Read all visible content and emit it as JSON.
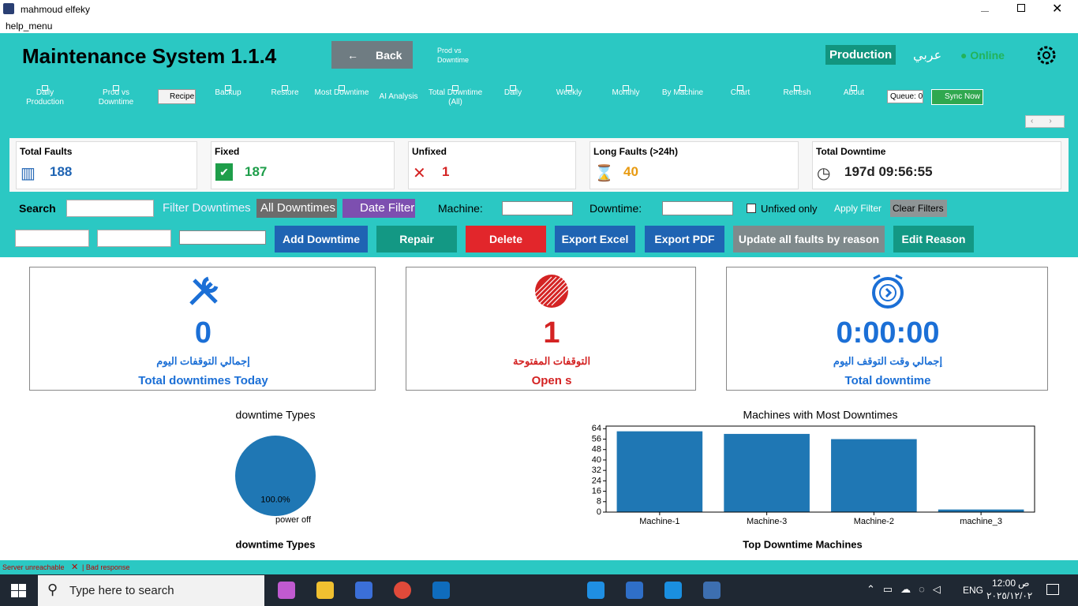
{
  "window": {
    "title": "mahmoud elfeky",
    "menu": "help_menu"
  },
  "header": {
    "title": "Maintenance System 1.1.4",
    "back_icon": "←",
    "back": "Back",
    "prod_vs": "Prod vs Downtime",
    "production": "Production",
    "language": "عربي",
    "status": "● Online"
  },
  "toolbar": [
    "Daily Production",
    "Prod vs Downtime",
    "Recipe",
    "Backup",
    "Restore",
    "Most Downtime",
    "AI Analysis",
    "Total Downtime (All)",
    "Daily",
    "Weekly",
    "Monthly",
    "By Machine",
    "Chart",
    "Refresh",
    "About"
  ],
  "queue": "Queue: 0",
  "sync": "Sync Now",
  "stats": [
    {
      "label": "Total Faults",
      "value": 188
    },
    {
      "label": "Fixed",
      "value": 187
    },
    {
      "label": "Unfixed",
      "value": 1
    },
    {
      "label": "Long Faults (>24h)",
      "value": 40
    },
    {
      "label": "Total Downtime",
      "value": "197d 09:56:55"
    }
  ],
  "filters": {
    "search": "Search",
    "filter_downtimes": "Filter Downtimes",
    "all_downtimes": "All Downtimes",
    "date_filter": "Date Filter",
    "machine": "Machine:",
    "downtime": "Downtime:",
    "unfixed_only": "Unfixed only",
    "apply": "Apply Filter",
    "clear": "Clear Filters"
  },
  "buttons": [
    {
      "label": "Add Downtime",
      "color": "#1f64b3"
    },
    {
      "label": "Repair",
      "color": "#139884"
    },
    {
      "label": "Delete",
      "color": "#e2262b"
    },
    {
      "label": "Export Excel",
      "color": "#1f64b3"
    },
    {
      "label": "Export PDF",
      "color": "#1f64b3"
    },
    {
      "label": "Update all faults by reason",
      "color": "#7f8a8c"
    },
    {
      "label": "Edit Reason",
      "color": "#139884"
    }
  ],
  "cards": [
    {
      "value": 0,
      "arabic": "إجمالي التوقفات اليوم",
      "label": "Total downtimes Today",
      "color": "#1b6fd6"
    },
    {
      "value": 1,
      "arabic": "التوقفات المفتوحة",
      "label": "Open s",
      "color": "#d42323"
    },
    {
      "value": "0:00:00",
      "arabic": "إجمالي وقت التوقف اليوم",
      "label": "Total downtime",
      "color": "#1b6fd6"
    }
  ],
  "pie_chart": {
    "type": "pie",
    "title": "downtime Types",
    "categories": [
      "power off"
    ],
    "values": [
      100
    ],
    "value_labels": [
      "100.0%"
    ],
    "colors": [
      "#1f77b4"
    ],
    "caption": "downtime Types"
  },
  "bar_chart": {
    "type": "bar",
    "title": "Machines with Most Downtimes",
    "categories": [
      "Machine-1",
      "Machine-3",
      "Machine-2",
      "machine_3"
    ],
    "values": [
      62,
      60,
      56,
      2
    ],
    "color": "#1f77b4",
    "ylim": [
      0,
      66
    ],
    "yticks": [
      0,
      8,
      16,
      24,
      32,
      40,
      48,
      56,
      64
    ],
    "caption": "Top Downtime Machines"
  },
  "status_bar": {
    "server": "Server unreachable",
    "icon": "✕",
    "response": "| Bad response"
  },
  "taskbar": {
    "search": "Type here to search",
    "lang": "ENG",
    "time": "12:00",
    "ampm": "ص",
    "date": "٢٠٢٥/١٢/٠٢"
  }
}
